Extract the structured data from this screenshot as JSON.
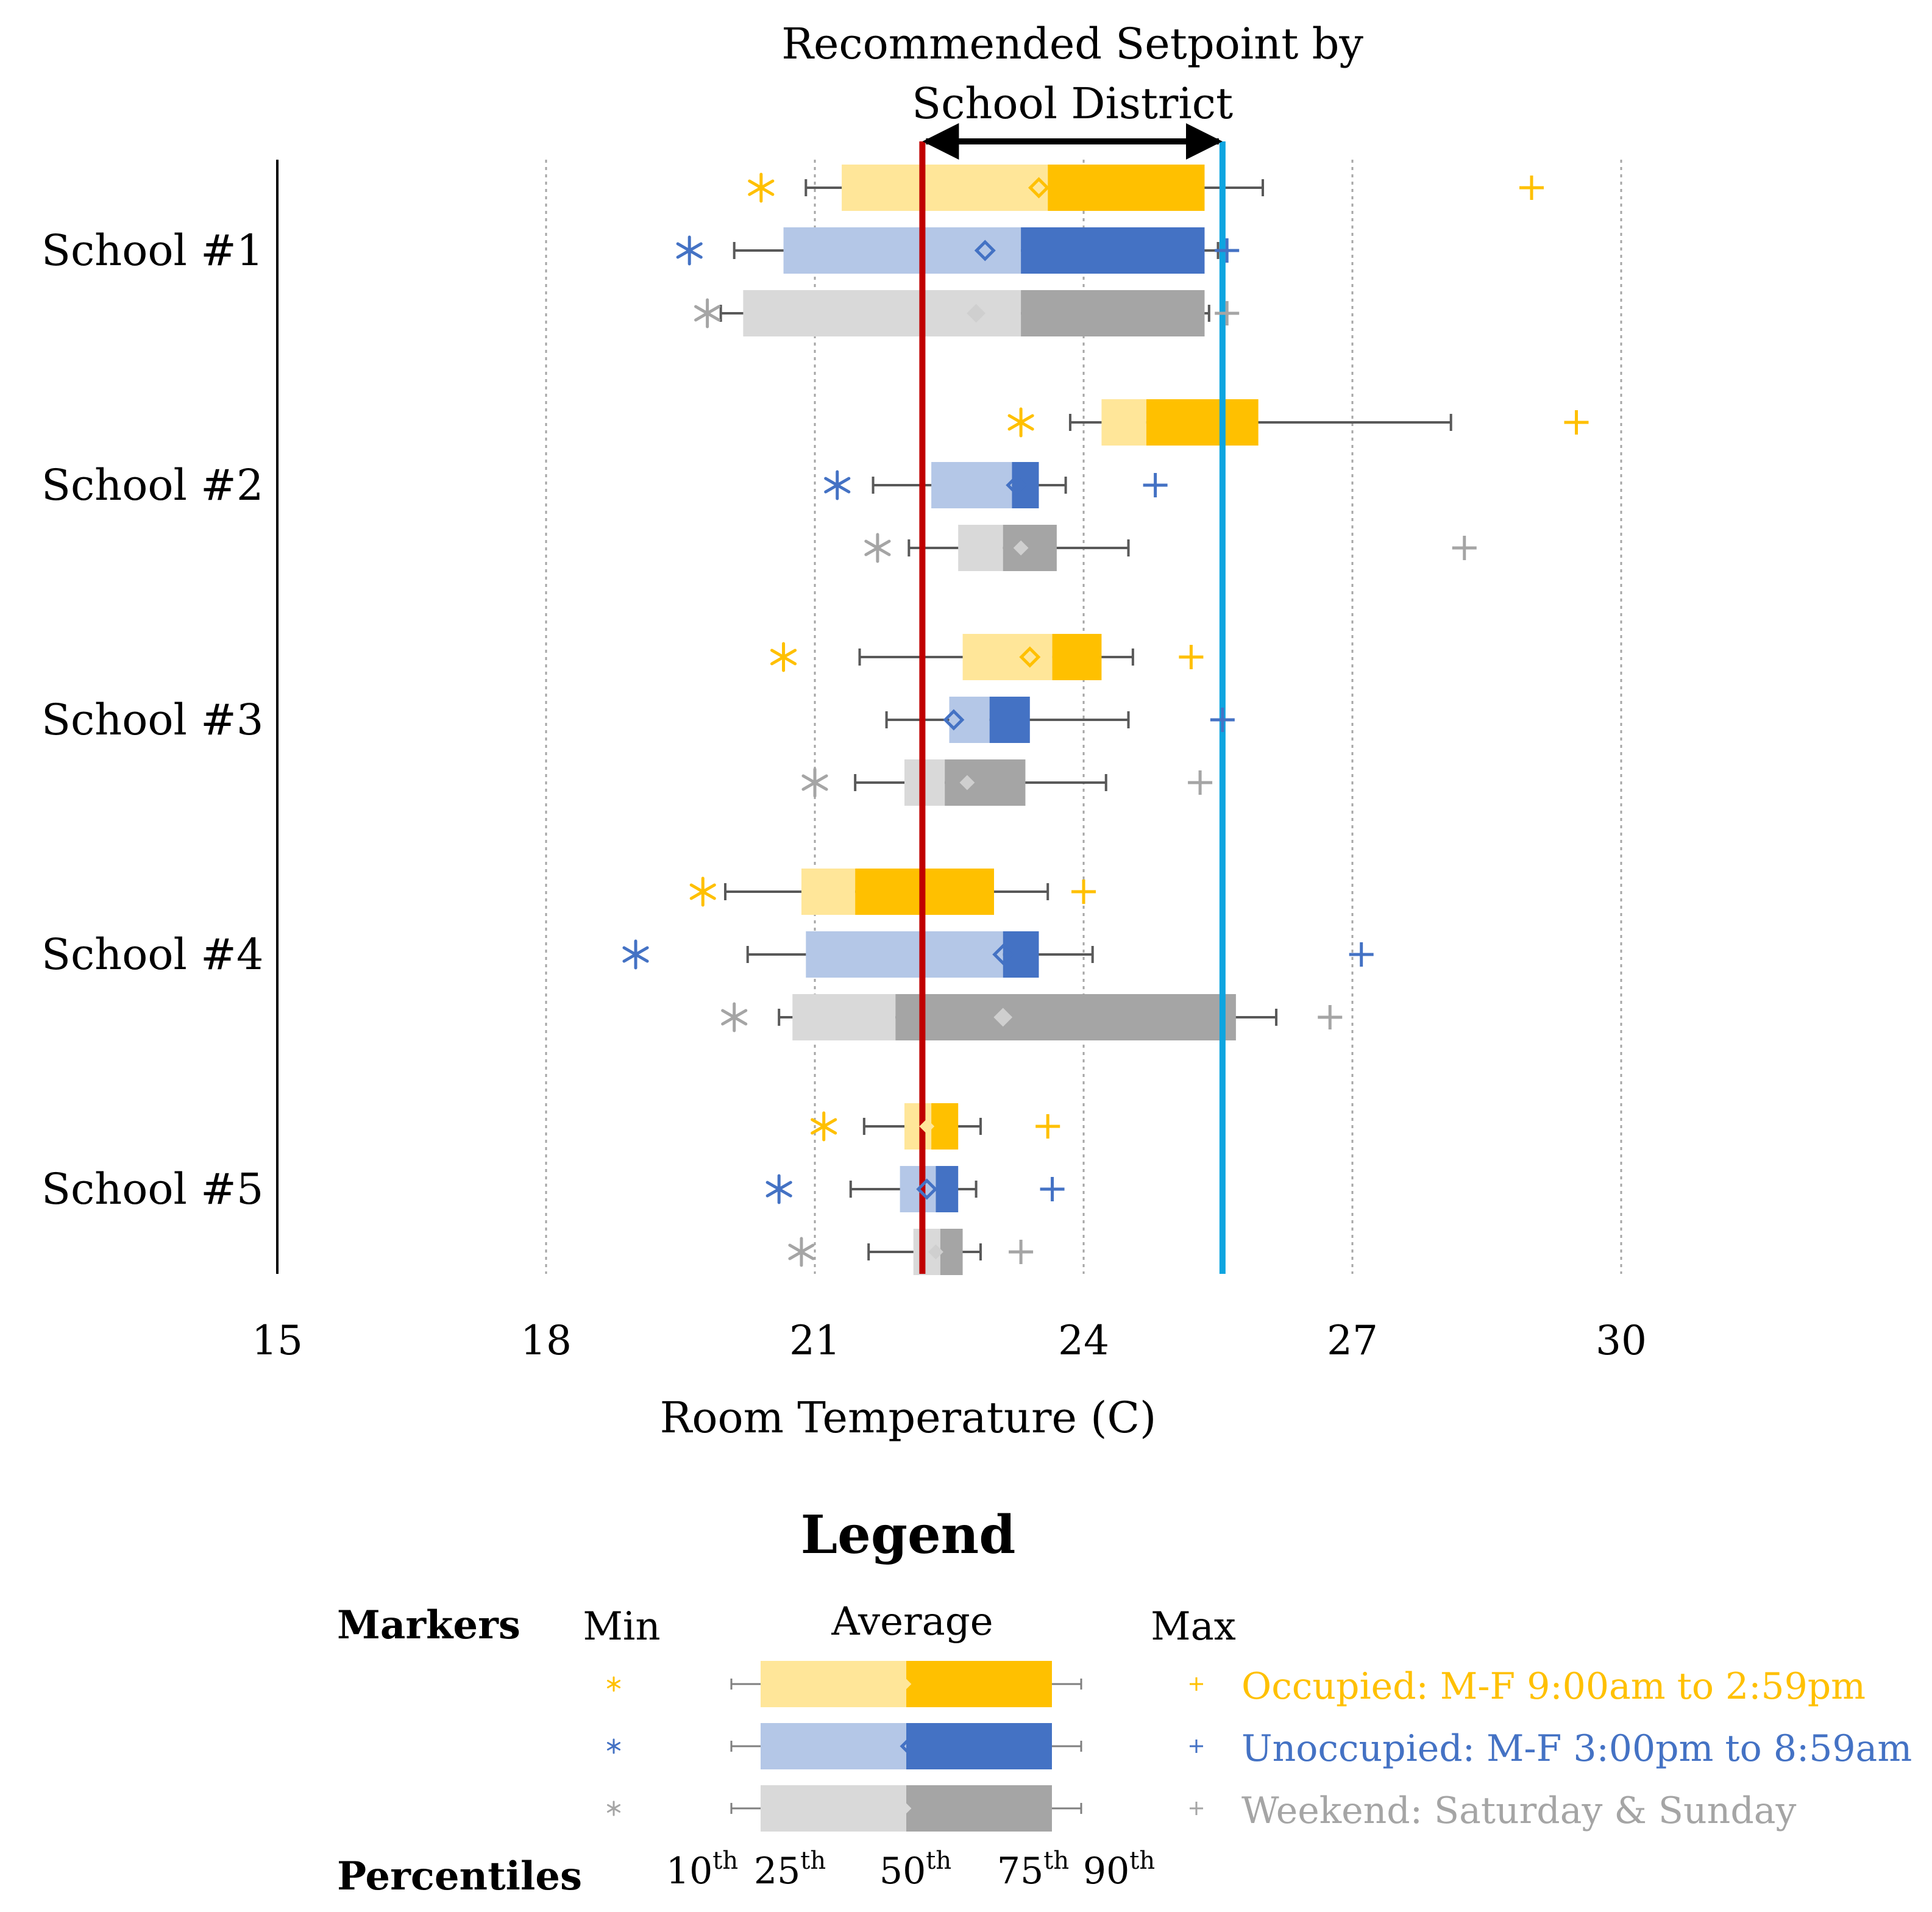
{
  "chart_data": {
    "type": "boxplot",
    "title": "",
    "xlabel": "Room Temperature (C)",
    "ylabel": "",
    "xlim": [
      15,
      32.4
    ],
    "xticks": [
      15,
      18,
      21,
      24,
      27,
      30
    ],
    "grid": "vertical dotted",
    "reference_lines": [
      {
        "name": "lower-setpoint",
        "value": 22.2,
        "color": "#c00000"
      },
      {
        "name": "upper-setpoint",
        "value": 25.55,
        "color": "#0ea5e0"
      }
    ],
    "annotation": {
      "line1": "Recommended Setpoint by",
      "line2": "School District",
      "from": 22.2,
      "to": 25.55
    },
    "series": [
      {
        "name": "Occupied: M-F 9:00am to 2:59pm",
        "light": "#ffe699",
        "dark": "#ffc000",
        "marker": "#ffc000",
        "text": "#ffc000"
      },
      {
        "name": "Unoccupied: M-F 3:00pm to 8:59am",
        "light": "#b4c7e7",
        "dark": "#4472c4",
        "marker": "#4472c4",
        "text": "#4472c4"
      },
      {
        "name": "Weekend: Saturday & Sunday",
        "light": "#d9d9d9",
        "dark": "#a5a5a5",
        "marker": "#a5a5a5",
        "text": "#a5a5a5"
      }
    ],
    "schools": [
      {
        "name": "School #1",
        "rows": [
          {
            "min": 20.4,
            "p10": 20.9,
            "p25": 21.3,
            "p50": 23.6,
            "p75": 25.35,
            "p90": 26.0,
            "avg": 23.5,
            "max": 29.0
          },
          {
            "min": 19.6,
            "p10": 20.1,
            "p25": 20.65,
            "p50": 23.3,
            "p75": 25.35,
            "p90": 25.5,
            "avg": 22.9,
            "max": 25.6
          },
          {
            "min": 19.8,
            "p10": 19.95,
            "p25": 20.2,
            "p50": 23.3,
            "p75": 25.35,
            "p90": 25.4,
            "avg": 22.8,
            "max": 25.6
          }
        ]
      },
      {
        "name": "School #2",
        "rows": [
          {
            "min": 23.3,
            "p10": 23.85,
            "p25": 24.2,
            "p50": 24.7,
            "p75": 25.95,
            "p90": 28.1,
            "avg": 25.3,
            "max": 29.5
          },
          {
            "min": 21.25,
            "p10": 21.65,
            "p25": 22.3,
            "p50": 23.2,
            "p75": 23.5,
            "p90": 23.8,
            "avg": 23.25,
            "max": 24.8
          },
          {
            "min": 21.7,
            "p10": 22.05,
            "p25": 22.6,
            "p50": 23.1,
            "p75": 23.7,
            "p90": 24.5,
            "avg": 23.3,
            "max": 28.25
          }
        ]
      },
      {
        "name": "School #3",
        "rows": [
          {
            "min": 20.65,
            "p10": 21.5,
            "p25": 22.65,
            "p50": 23.65,
            "p75": 24.2,
            "p90": 24.55,
            "avg": 23.4,
            "max": 25.2
          },
          {
            "min": null,
            "p10": 21.8,
            "p25": 22.5,
            "p50": 22.95,
            "p75": 23.4,
            "p90": 24.5,
            "avg": 22.55,
            "max": 25.55
          },
          {
            "min": 21.0,
            "p10": 21.45,
            "p25": 22.0,
            "p50": 22.45,
            "p75": 23.35,
            "p90": 24.25,
            "avg": 22.7,
            "max": 25.3
          }
        ]
      },
      {
        "name": "School #4",
        "rows": [
          {
            "min": 19.75,
            "p10": 20.0,
            "p25": 20.85,
            "p50": 21.45,
            "p75": 23.0,
            "p90": 23.6,
            "avg": 21.75,
            "max": 24.0
          },
          {
            "min": 19.0,
            "p10": 20.25,
            "p25": 20.9,
            "p50": 23.1,
            "p75": 23.5,
            "p90": 24.1,
            "avg": 23.1,
            "max": 27.1
          },
          {
            "min": 20.1,
            "p10": 20.6,
            "p25": 20.75,
            "p50": 21.9,
            "p75": 25.7,
            "p90": 26.15,
            "avg": 23.1,
            "max": 26.75
          }
        ]
      },
      {
        "name": "School #5",
        "rows": [
          {
            "min": 21.1,
            "p10": 21.55,
            "p25": 22.0,
            "p50": 22.3,
            "p75": 22.6,
            "p90": 22.85,
            "avg": 22.25,
            "max": 23.6
          },
          {
            "min": 20.6,
            "p10": 21.4,
            "p25": 21.95,
            "p50": 22.35,
            "p75": 22.6,
            "p90": 22.8,
            "avg": 22.25,
            "max": 23.65
          },
          {
            "min": 20.85,
            "p10": 21.6,
            "p25": 22.1,
            "p50": 22.4,
            "p75": 22.65,
            "p90": 22.85,
            "avg": 22.35,
            "max": 23.3
          }
        ]
      }
    ]
  },
  "legend": {
    "title": "Legend",
    "markers_label": "Markers",
    "min_label": "Min",
    "average_label": "Average",
    "max_label": "Max",
    "percentiles_label": "Percentiles",
    "percentiles": [
      {
        "base": "10",
        "sup": "th"
      },
      {
        "base": "25",
        "sup": "th"
      },
      {
        "base": "50",
        "sup": "th"
      },
      {
        "base": "75",
        "sup": "th"
      },
      {
        "base": "90",
        "sup": "th"
      }
    ]
  }
}
